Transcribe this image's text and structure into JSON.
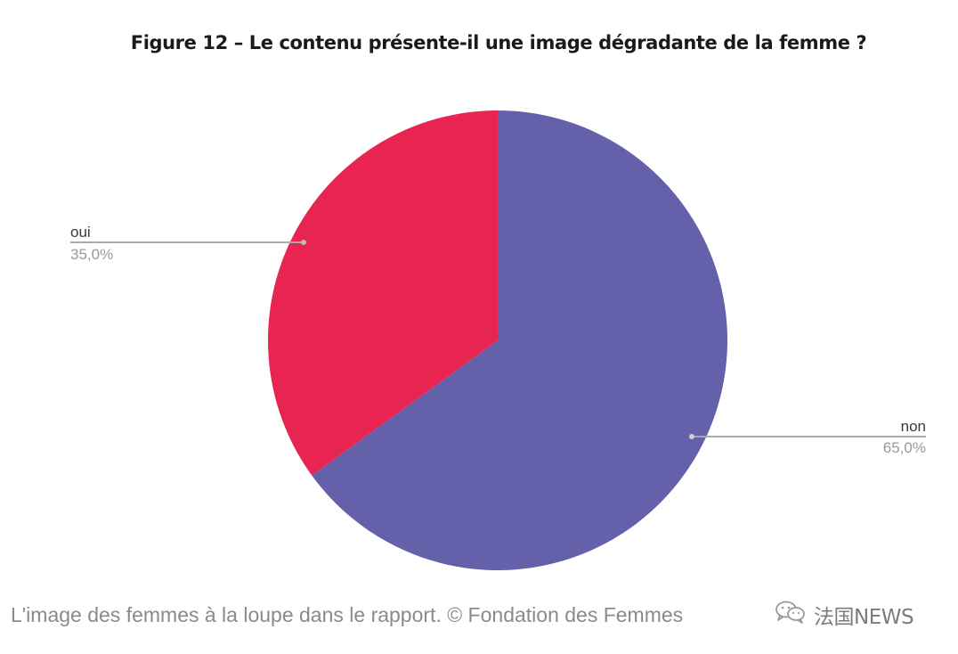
{
  "chart_data": {
    "type": "pie",
    "title": "Figure 12 – Le contenu présente-il une image dégradante de la femme ?",
    "slices": [
      {
        "label": "non",
        "value": 65.0,
        "display": "65,0%",
        "color": "#6460a9"
      },
      {
        "label": "oui",
        "value": 35.0,
        "display": "35,0%",
        "color": "#e82450"
      }
    ],
    "start": "12 o'clock",
    "direction": "clockwise"
  },
  "caption": "L'image des femmes à la loupe dans le rapport. © Fondation des Femmes",
  "watermark": {
    "icon": "wechat-icon",
    "text": "法国NEWS"
  },
  "colors": {
    "leader_line": "#aaaaaa",
    "label_text": "#3a3a3a",
    "percent_text": "#9a9a9a"
  }
}
